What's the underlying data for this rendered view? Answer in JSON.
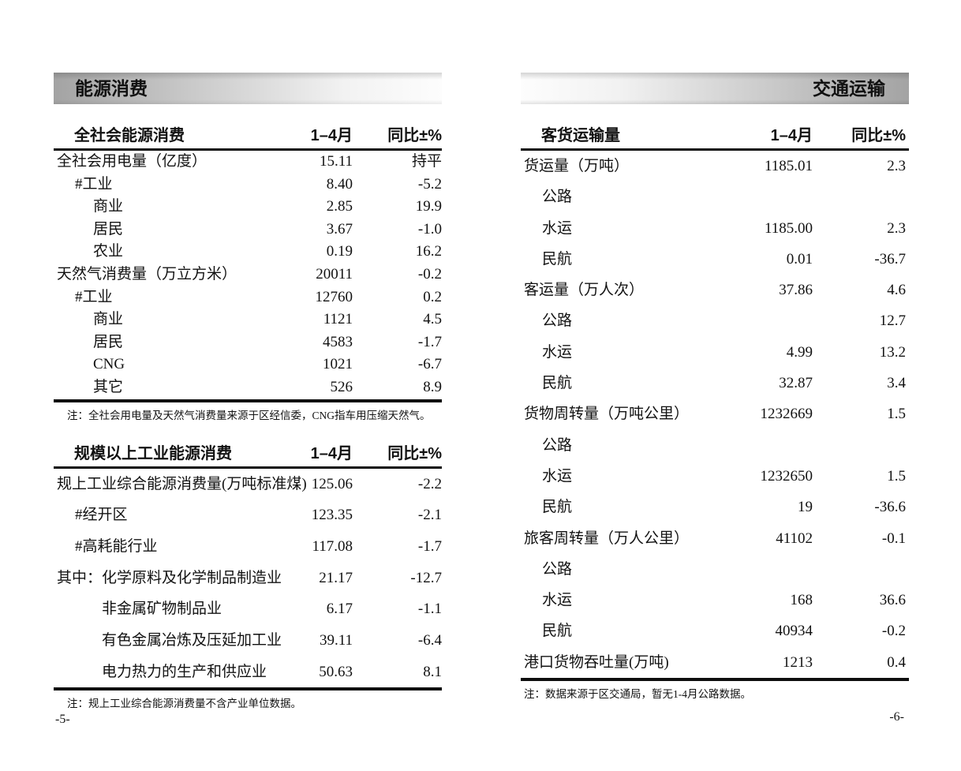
{
  "colors": {
    "bar_gray": "#a3a3a3",
    "text": "#121212"
  },
  "left": {
    "section_title": "能源消费",
    "page_number": "-5-",
    "tables": [
      {
        "title": "全社会能源消费",
        "col_month": "1–4月",
        "col_yoy": "同比±%",
        "rows": [
          {
            "label": "全社会用电量（亿度）",
            "indent": 0,
            "value": "15.11",
            "pct": "持平"
          },
          {
            "label": "#工业",
            "indent": 1,
            "value": "8.40",
            "pct": "-5.2"
          },
          {
            "label": "商业",
            "indent": 2,
            "value": "2.85",
            "pct": "19.9"
          },
          {
            "label": "居民",
            "indent": 2,
            "value": "3.67",
            "pct": "-1.0"
          },
          {
            "label": "农业",
            "indent": 2,
            "value": "0.19",
            "pct": "16.2"
          },
          {
            "label": "天然气消费量（万立方米）",
            "indent": 0,
            "value": "20011",
            "pct": "-0.2"
          },
          {
            "label": "#工业",
            "indent": 1,
            "value": "12760",
            "pct": "0.2"
          },
          {
            "label": "商业",
            "indent": 2,
            "value": "1121",
            "pct": "4.5"
          },
          {
            "label": "居民",
            "indent": 2,
            "value": "4583",
            "pct": "-1.7"
          },
          {
            "label": "CNG",
            "indent": 2,
            "value": "1021",
            "pct": "-6.7"
          },
          {
            "label": "其它",
            "indent": 2,
            "value": "526",
            "pct": "8.9"
          }
        ],
        "note": "注：全社会用电量及天然气消费量来源于区经信委，CNG指车用压缩天然气。"
      },
      {
        "title": "规模以上工业能源消费",
        "col_month": "1–4月",
        "col_yoy": "同比±%",
        "rows": [
          {
            "label": "规上工业综合能源消费量(万吨标准煤)",
            "indent": 0,
            "value": "125.06",
            "pct": "-2.2"
          },
          {
            "label": "#经开区",
            "indent": 1,
            "value": "123.35",
            "pct": "-2.1"
          },
          {
            "label": "#高耗能行业",
            "indent": 1,
            "value": "117.08",
            "pct": "-1.7"
          },
          {
            "label": "其中：化学原料及化学制品制造业",
            "indent": 0,
            "value": "21.17",
            "pct": "-12.7"
          },
          {
            "label": "非金属矿物制品业",
            "indent": 3,
            "value": "6.17",
            "pct": "-1.1"
          },
          {
            "label": "有色金属冶炼及压延加工业",
            "indent": 3,
            "value": "39.11",
            "pct": "-6.4"
          },
          {
            "label": "电力热力的生产和供应业",
            "indent": 3,
            "value": "50.63",
            "pct": "8.1"
          }
        ],
        "note": "注：规上工业综合能源消费量不含产业单位数据。"
      }
    ]
  },
  "right": {
    "section_title": "交通运输",
    "page_number": "-6-",
    "tables": [
      {
        "title": "客货运输量",
        "col_month": "1–4月",
        "col_yoy": "同比±%",
        "rows": [
          {
            "label": "货运量（万吨）",
            "indent": 0,
            "value": "1185.01",
            "pct": "2.3"
          },
          {
            "label": "公路",
            "indent": 1,
            "value": "",
            "pct": ""
          },
          {
            "label": "水运",
            "indent": 1,
            "value": "1185.00",
            "pct": "2.3"
          },
          {
            "label": "民航",
            "indent": 1,
            "value": "0.01",
            "pct": "-36.7"
          },
          {
            "label": "客运量（万人次）",
            "indent": 0,
            "value": "37.86",
            "pct": "4.6"
          },
          {
            "label": "公路",
            "indent": 1,
            "value": "",
            "pct": "12.7"
          },
          {
            "label": "水运",
            "indent": 1,
            "value": "4.99",
            "pct": "13.2"
          },
          {
            "label": "民航",
            "indent": 1,
            "value": "32.87",
            "pct": "3.4"
          },
          {
            "label": "货物周转量（万吨公里）",
            "indent": 0,
            "value": "1232669",
            "pct": "1.5"
          },
          {
            "label": "公路",
            "indent": 1,
            "value": "",
            "pct": ""
          },
          {
            "label": "水运",
            "indent": 1,
            "value": "1232650",
            "pct": "1.5"
          },
          {
            "label": "民航",
            "indent": 1,
            "value": "19",
            "pct": "-36.6"
          },
          {
            "label": "旅客周转量（万人公里）",
            "indent": 0,
            "value": "41102",
            "pct": "-0.1"
          },
          {
            "label": "公路",
            "indent": 1,
            "value": "",
            "pct": ""
          },
          {
            "label": "水运",
            "indent": 1,
            "value": "168",
            "pct": "36.6"
          },
          {
            "label": "民航",
            "indent": 1,
            "value": "40934",
            "pct": "-0.2"
          },
          {
            "label": "港口货物吞吐量(万吨)",
            "indent": 0,
            "value": "1213",
            "pct": "0.4"
          }
        ],
        "note": "注：数据来源于区交通局，暂无1-4月公路数据。"
      }
    ]
  }
}
